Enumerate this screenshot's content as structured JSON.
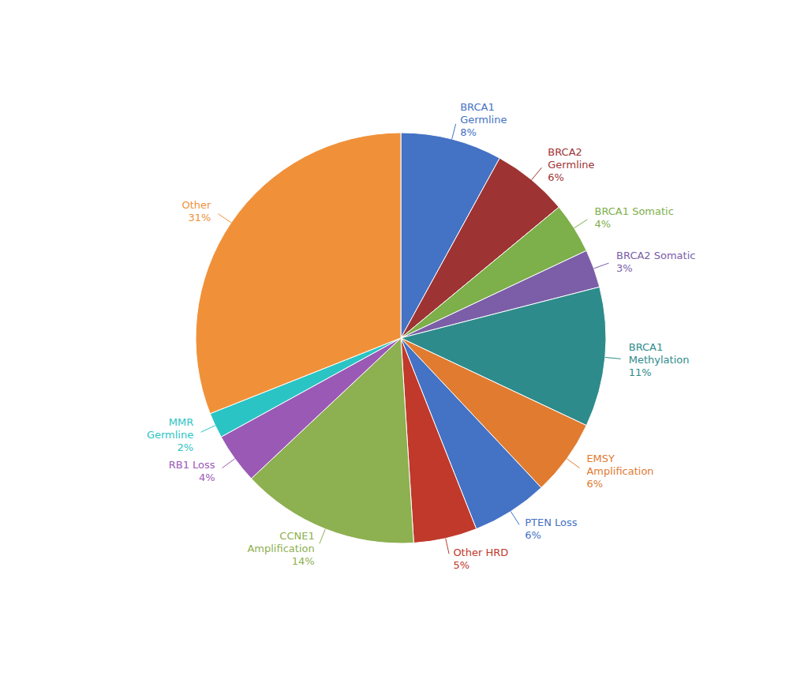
{
  "chart_data": {
    "type": "pie",
    "categories": [
      "BRCA1\nGermline\n8%",
      "BRCA2\nGermline\n6%",
      "BRCA1 Somatic\n4%",
      "BRCA2 Somatic\n3%",
      "BRCA1\nMethylation\n11%",
      "EMSY\nAmplification\n6%",
      "PTEN Loss\n6%",
      "Other HRD\n5%",
      "CCNE1\nAmplification\n14%",
      "RB1 Loss\n4%",
      "MMR\nGermline\n2%",
      "Other\n31%"
    ],
    "values": [
      8,
      6,
      4,
      3,
      11,
      6,
      6,
      5,
      14,
      4,
      2,
      31
    ],
    "colors": [
      "#4472C4",
      "#9E3333",
      "#7DAF4A",
      "#7B5EA7",
      "#2E8B8B",
      "#E07B30",
      "#4472C4",
      "#C0392B",
      "#8DB050",
      "#9B59B6",
      "#2BC4C4",
      "#F0913A"
    ]
  }
}
